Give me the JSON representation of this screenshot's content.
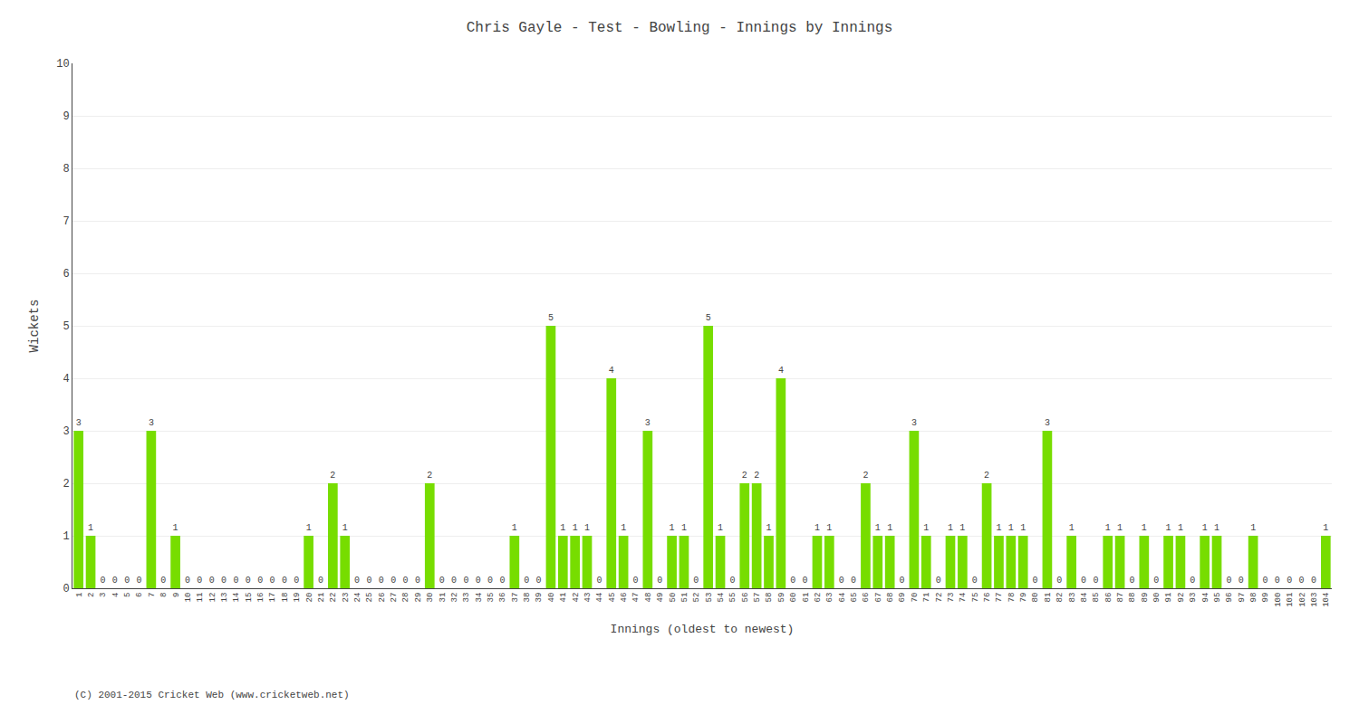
{
  "chart_data": {
    "type": "bar",
    "title": "Chris Gayle - Test - Bowling - Innings by Innings",
    "xlabel": "Innings (oldest to newest)",
    "ylabel": "Wickets",
    "annotations": [
      "(C) 2001-2015 Cricket Web (www.cricketweb.net)"
    ],
    "color": "#77dd00",
    "categories": [
      "1",
      "2",
      "3",
      "4",
      "5",
      "6",
      "7",
      "8",
      "9",
      "10",
      "11",
      "12",
      "13",
      "14",
      "15",
      "16",
      "17",
      "18",
      "19",
      "20",
      "21",
      "22",
      "23",
      "24",
      "25",
      "26",
      "27",
      "28",
      "29",
      "30",
      "31",
      "32",
      "33",
      "34",
      "35",
      "36",
      "37",
      "38",
      "39",
      "40",
      "41",
      "42",
      "43",
      "44",
      "45",
      "46",
      "47",
      "48",
      "49",
      "50",
      "51",
      "52",
      "53",
      "54",
      "55",
      "56",
      "57",
      "58",
      "59",
      "60",
      "61",
      "62",
      "63",
      "64",
      "65",
      "66",
      "67",
      "68",
      "69",
      "70",
      "71",
      "72",
      "73",
      "74",
      "75",
      "76",
      "77",
      "78",
      "79",
      "80",
      "81",
      "82",
      "83",
      "84",
      "85",
      "86",
      "87",
      "88",
      "89",
      "90",
      "91",
      "92",
      "93",
      "94",
      "95",
      "96",
      "97",
      "98",
      "99",
      "100",
      "101",
      "102",
      "103",
      "104"
    ],
    "values": [
      3,
      1,
      0,
      0,
      0,
      0,
      3,
      0,
      1,
      0,
      0,
      0,
      0,
      0,
      0,
      0,
      0,
      0,
      0,
      1,
      0,
      2,
      1,
      0,
      0,
      0,
      0,
      0,
      0,
      2,
      0,
      0,
      0,
      0,
      0,
      0,
      1,
      0,
      0,
      5,
      1,
      1,
      1,
      0,
      4,
      1,
      0,
      3,
      0,
      1,
      1,
      0,
      5,
      1,
      0,
      2,
      2,
      1,
      4,
      0,
      0,
      1,
      1,
      0,
      0,
      2,
      1,
      1,
      0,
      3,
      1,
      0,
      1,
      1,
      0,
      2,
      1,
      1,
      1,
      0,
      3,
      0,
      1,
      0,
      0,
      1,
      1,
      0,
      1,
      0,
      1,
      1,
      0,
      1,
      1,
      0,
      0,
      1,
      0,
      0,
      0,
      0,
      0,
      1
    ],
    "ylim": [
      0,
      10
    ],
    "yticks": [
      0,
      1,
      2,
      3,
      4,
      5,
      6,
      7,
      8,
      9,
      10
    ],
    "grid": true,
    "data_labels": true
  }
}
